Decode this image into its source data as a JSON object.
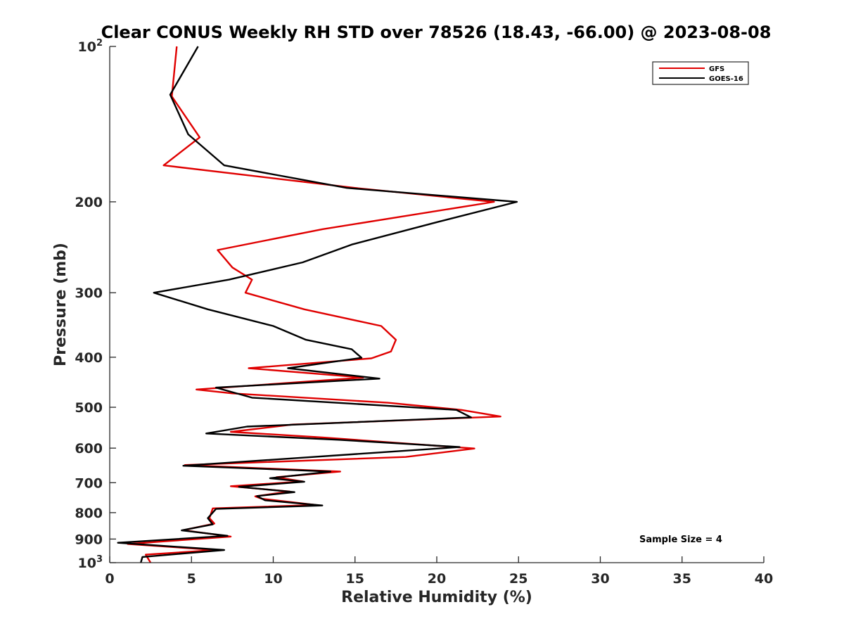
{
  "chart_data": {
    "type": "line",
    "title": "Clear CONUS Weekly RH STD over 78526 (18.43, -66.00) @ 2023-08-08",
    "xlabel": "Relative Humidity (%)",
    "ylabel": "Pressure (mb)",
    "xlim": [
      0,
      40
    ],
    "ylim": [
      100,
      1000
    ],
    "y_scale": "log",
    "y_reversed": true,
    "grid": false,
    "x_ticks": [
      {
        "value": 0,
        "label": "0"
      },
      {
        "value": 5,
        "label": "5"
      },
      {
        "value": 10,
        "label": "10"
      },
      {
        "value": 15,
        "label": "15"
      },
      {
        "value": 20,
        "label": "20"
      },
      {
        "value": 25,
        "label": "25"
      },
      {
        "value": 30,
        "label": "30"
      },
      {
        "value": 35,
        "label": "35"
      },
      {
        "value": 40,
        "label": "40"
      }
    ],
    "y_ticks": [
      {
        "value": 100,
        "base": "10",
        "exp": "2"
      },
      {
        "value": 200,
        "base": "200",
        "exp": ""
      },
      {
        "value": 300,
        "base": "300",
        "exp": ""
      },
      {
        "value": 400,
        "base": "400",
        "exp": ""
      },
      {
        "value": 500,
        "base": "500",
        "exp": ""
      },
      {
        "value": 600,
        "base": "600",
        "exp": ""
      },
      {
        "value": 700,
        "base": "700",
        "exp": ""
      },
      {
        "value": 800,
        "base": "800",
        "exp": ""
      },
      {
        "value": 900,
        "base": "900",
        "exp": ""
      },
      {
        "value": 1000,
        "base": "10",
        "exp": "3"
      }
    ],
    "legend_position": "top-right",
    "series": [
      {
        "name": "GFS",
        "color": "#e00000",
        "points": [
          [
            4.1,
            100
          ],
          [
            3.8,
            125
          ],
          [
            5.5,
            150
          ],
          [
            3.3,
            170
          ],
          [
            15.0,
            188
          ],
          [
            23.5,
            200
          ],
          [
            13.0,
            226
          ],
          [
            6.6,
            248
          ],
          [
            7.5,
            268
          ],
          [
            8.7,
            283
          ],
          [
            8.3,
            300
          ],
          [
            11.9,
            323
          ],
          [
            16.6,
            348
          ],
          [
            17.5,
            370
          ],
          [
            17.2,
            390
          ],
          [
            16.0,
            402
          ],
          [
            8.5,
            420
          ],
          [
            15.5,
            438
          ],
          [
            5.3,
            462
          ],
          [
            7.5,
            470
          ],
          [
            17.0,
            490
          ],
          [
            21.5,
            506
          ],
          [
            23.9,
            521
          ],
          [
            11.2,
            540
          ],
          [
            7.4,
            558
          ],
          [
            13.0,
            572
          ],
          [
            22.3,
            601
          ],
          [
            18.1,
            624
          ],
          [
            4.6,
            647
          ],
          [
            14.1,
            666
          ],
          [
            10.2,
            683
          ],
          [
            11.8,
            696
          ],
          [
            7.4,
            711
          ],
          [
            11.0,
            728
          ],
          [
            8.9,
            744
          ],
          [
            9.3,
            752
          ],
          [
            12.6,
            773
          ],
          [
            6.3,
            785
          ],
          [
            6.1,
            820
          ],
          [
            6.4,
            840
          ],
          [
            4.5,
            865
          ],
          [
            7.4,
            890
          ],
          [
            1.1,
            920
          ],
          [
            6.5,
            945
          ],
          [
            2.2,
            965
          ],
          [
            2.5,
            1000
          ]
        ]
      },
      {
        "name": "GOES-16",
        "color": "#000000",
        "points": [
          [
            5.4,
            100
          ],
          [
            3.7,
            124
          ],
          [
            4.8,
            148
          ],
          [
            7.0,
            170
          ],
          [
            14.5,
            188
          ],
          [
            24.9,
            200
          ],
          [
            20.0,
            219
          ],
          [
            14.8,
            242
          ],
          [
            11.8,
            262
          ],
          [
            7.3,
            283
          ],
          [
            2.7,
            300
          ],
          [
            6.0,
            323
          ],
          [
            10.0,
            348
          ],
          [
            12.0,
            370
          ],
          [
            14.8,
            386
          ],
          [
            15.4,
            401
          ],
          [
            10.9,
            420
          ],
          [
            16.5,
            440
          ],
          [
            6.5,
            458
          ],
          [
            8.7,
            479
          ],
          [
            21.2,
            506
          ],
          [
            22.1,
            523
          ],
          [
            8.4,
            545
          ],
          [
            5.9,
            562
          ],
          [
            14.0,
            578
          ],
          [
            21.4,
            597
          ],
          [
            4.5,
            649
          ],
          [
            13.5,
            666
          ],
          [
            9.8,
            686
          ],
          [
            11.9,
            697
          ],
          [
            7.9,
            713
          ],
          [
            11.3,
            730
          ],
          [
            9.0,
            743
          ],
          [
            9.5,
            757
          ],
          [
            13.0,
            775
          ],
          [
            6.5,
            787
          ],
          [
            6.0,
            820
          ],
          [
            6.3,
            843
          ],
          [
            4.4,
            866
          ],
          [
            7.2,
            887
          ],
          [
            0.5,
            915
          ],
          [
            7.0,
            945
          ],
          [
            2.0,
            975
          ],
          [
            1.9,
            1000
          ]
        ]
      }
    ],
    "annotations": [
      {
        "text": "Sample Size = 4"
      }
    ]
  }
}
